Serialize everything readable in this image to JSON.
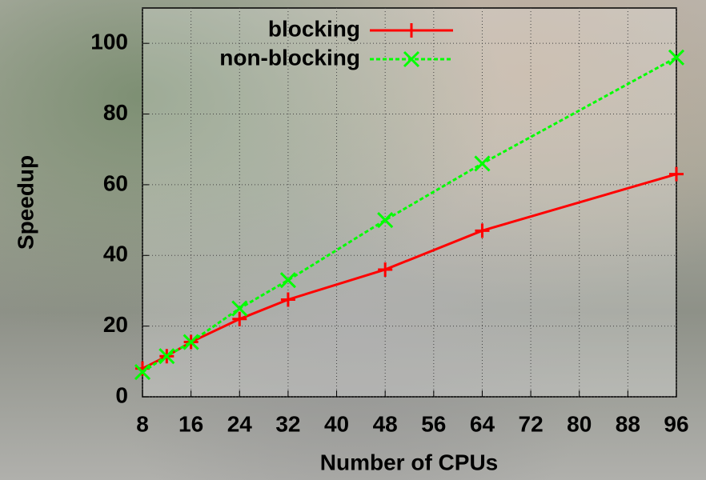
{
  "chart_data": {
    "type": "line",
    "x_label": "Number of CPUs",
    "y_label": "Speedup",
    "x": [
      8,
      12,
      16,
      24,
      32,
      48,
      64,
      96
    ],
    "series": [
      {
        "name": "blocking",
        "color": "#ff0000",
        "marker": "plus",
        "dashed": false,
        "values": [
          8,
          11.5,
          15.5,
          22,
          27.5,
          36,
          47,
          63
        ]
      },
      {
        "name": "non-blocking",
        "color": "#00ff00",
        "marker": "cross",
        "dashed": true,
        "values": [
          7,
          11.5,
          15.5,
          25,
          33,
          50,
          66,
          96
        ]
      }
    ],
    "xlim": [
      8,
      96
    ],
    "xticks": [
      8,
      16,
      24,
      32,
      40,
      48,
      56,
      64,
      72,
      80,
      88,
      96
    ],
    "ylim": [
      0,
      110
    ],
    "yticks": [
      0,
      20,
      40,
      60,
      80,
      100
    ],
    "grid": true,
    "legend": "top"
  }
}
